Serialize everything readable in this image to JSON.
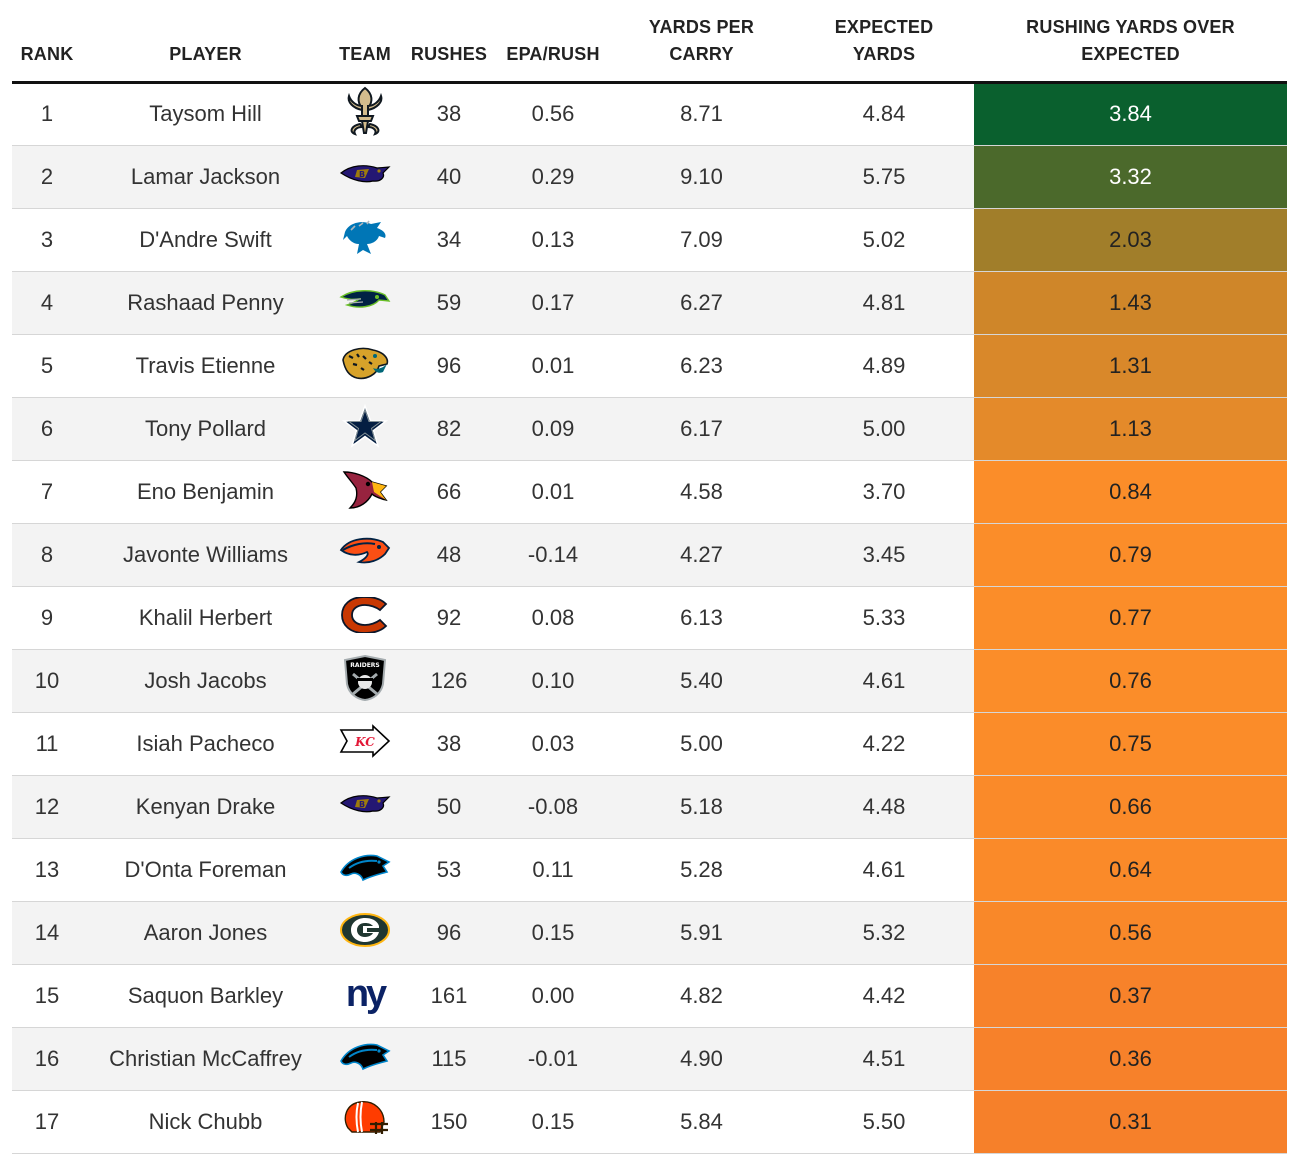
{
  "headers": {
    "rank": "RANK",
    "player": "PLAYER",
    "team": "TEAM",
    "rushes": "RUSHES",
    "epa": "EPA/RUSH",
    "ypc_1": "YARDS PER",
    "ypc_2": "CARRY",
    "exp_1": "EXPECTED",
    "exp_2": "YARDS",
    "ryoe_1": "RUSHING YARDS OVER",
    "ryoe_2": "EXPECTED"
  },
  "chart_data": {
    "type": "table",
    "columns": [
      "RANK",
      "PLAYER",
      "TEAM",
      "RUSHES",
      "EPA/RUSH",
      "YARDS PER CARRY",
      "EXPECTED YARDS",
      "RUSHING YARDS OVER EXPECTED"
    ],
    "rows": [
      {
        "rank": "1",
        "player": "Taysom Hill",
        "team": "saints-logo",
        "rushes": "38",
        "epa": "0.56",
        "ypc": "8.71",
        "exp": "4.84",
        "ryoe": "3.84",
        "bg": "#0a602e",
        "fg": "#ffffff"
      },
      {
        "rank": "2",
        "player": "Lamar Jackson",
        "team": "ravens-logo",
        "rushes": "40",
        "epa": "0.29",
        "ypc": "9.10",
        "exp": "5.75",
        "ryoe": "3.32",
        "bg": "#4b692b",
        "fg": "#ffffff"
      },
      {
        "rank": "3",
        "player": "D'Andre Swift",
        "team": "lions-logo",
        "rushes": "34",
        "epa": "0.13",
        "ypc": "7.09",
        "exp": "5.02",
        "ryoe": "2.03",
        "bg": "#a17e2a",
        "fg": "#222222"
      },
      {
        "rank": "4",
        "player": "Rashaad Penny",
        "team": "seahawks-logo",
        "rushes": "59",
        "epa": "0.17",
        "ypc": "6.27",
        "exp": "4.81",
        "ryoe": "1.43",
        "bg": "#cf8629",
        "fg": "#222222"
      },
      {
        "rank": "5",
        "player": "Travis Etienne",
        "team": "jaguars-logo",
        "rushes": "96",
        "epa": "0.01",
        "ypc": "6.23",
        "exp": "4.89",
        "ryoe": "1.31",
        "bg": "#d9882a",
        "fg": "#222222"
      },
      {
        "rank": "6",
        "player": "Tony Pollard",
        "team": "cowboys-logo",
        "rushes": "82",
        "epa": "0.09",
        "ypc": "6.17",
        "exp": "5.00",
        "ryoe": "1.13",
        "bg": "#e48a2a",
        "fg": "#222222"
      },
      {
        "rank": "7",
        "player": "Eno Benjamin",
        "team": "cardinals-logo",
        "rushes": "66",
        "epa": "0.01",
        "ypc": "4.58",
        "exp": "3.70",
        "ryoe": "0.84",
        "bg": "#fb8d29",
        "fg": "#222222"
      },
      {
        "rank": "8",
        "player": "Javonte Williams",
        "team": "broncos-logo",
        "rushes": "48",
        "epa": "-0.14",
        "ypc": "4.27",
        "exp": "3.45",
        "ryoe": "0.79",
        "bg": "#fb8d29",
        "fg": "#222222"
      },
      {
        "rank": "9",
        "player": "Khalil Herbert",
        "team": "bears-logo",
        "rushes": "92",
        "epa": "0.08",
        "ypc": "6.13",
        "exp": "5.33",
        "ryoe": "0.77",
        "bg": "#fb8d29",
        "fg": "#222222"
      },
      {
        "rank": "10",
        "player": "Josh Jacobs",
        "team": "raiders-logo",
        "rushes": "126",
        "epa": "0.10",
        "ypc": "5.40",
        "exp": "4.61",
        "ryoe": "0.76",
        "bg": "#fb8d29",
        "fg": "#222222"
      },
      {
        "rank": "11",
        "player": "Isiah Pacheco",
        "team": "chiefs-logo",
        "rushes": "38",
        "epa": "0.03",
        "ypc": "5.00",
        "exp": "4.22",
        "ryoe": "0.75",
        "bg": "#fb8c29",
        "fg": "#222222"
      },
      {
        "rank": "12",
        "player": "Kenyan Drake",
        "team": "ravens-logo",
        "rushes": "50",
        "epa": "-0.08",
        "ypc": "5.18",
        "exp": "4.48",
        "ryoe": "0.66",
        "bg": "#fa8a29",
        "fg": "#222222"
      },
      {
        "rank": "13",
        "player": "D'Onta Foreman",
        "team": "panthers-logo",
        "rushes": "53",
        "epa": "0.11",
        "ypc": "5.28",
        "exp": "4.61",
        "ryoe": "0.64",
        "bg": "#fa8a29",
        "fg": "#222222"
      },
      {
        "rank": "14",
        "player": "Aaron Jones",
        "team": "packers-logo",
        "rushes": "96",
        "epa": "0.15",
        "ypc": "5.91",
        "exp": "5.32",
        "ryoe": "0.56",
        "bg": "#f98829",
        "fg": "#222222"
      },
      {
        "rank": "15",
        "player": "Saquon Barkley",
        "team": "giants-logo",
        "rushes": "161",
        "epa": "0.00",
        "ypc": "4.82",
        "exp": "4.42",
        "ryoe": "0.37",
        "bg": "#f7822a",
        "fg": "#222222"
      },
      {
        "rank": "16",
        "player": "Christian McCaffrey",
        "team": "panthers-logo",
        "rushes": "115",
        "epa": "-0.01",
        "ypc": "4.90",
        "exp": "4.51",
        "ryoe": "0.36",
        "bg": "#f7812a",
        "fg": "#222222"
      },
      {
        "rank": "17",
        "player": "Nick Chubb",
        "team": "browns-logo",
        "rushes": "150",
        "epa": "0.15",
        "ypc": "5.84",
        "exp": "5.50",
        "ryoe": "0.31",
        "bg": "#f6802a",
        "fg": "#222222"
      }
    ]
  }
}
